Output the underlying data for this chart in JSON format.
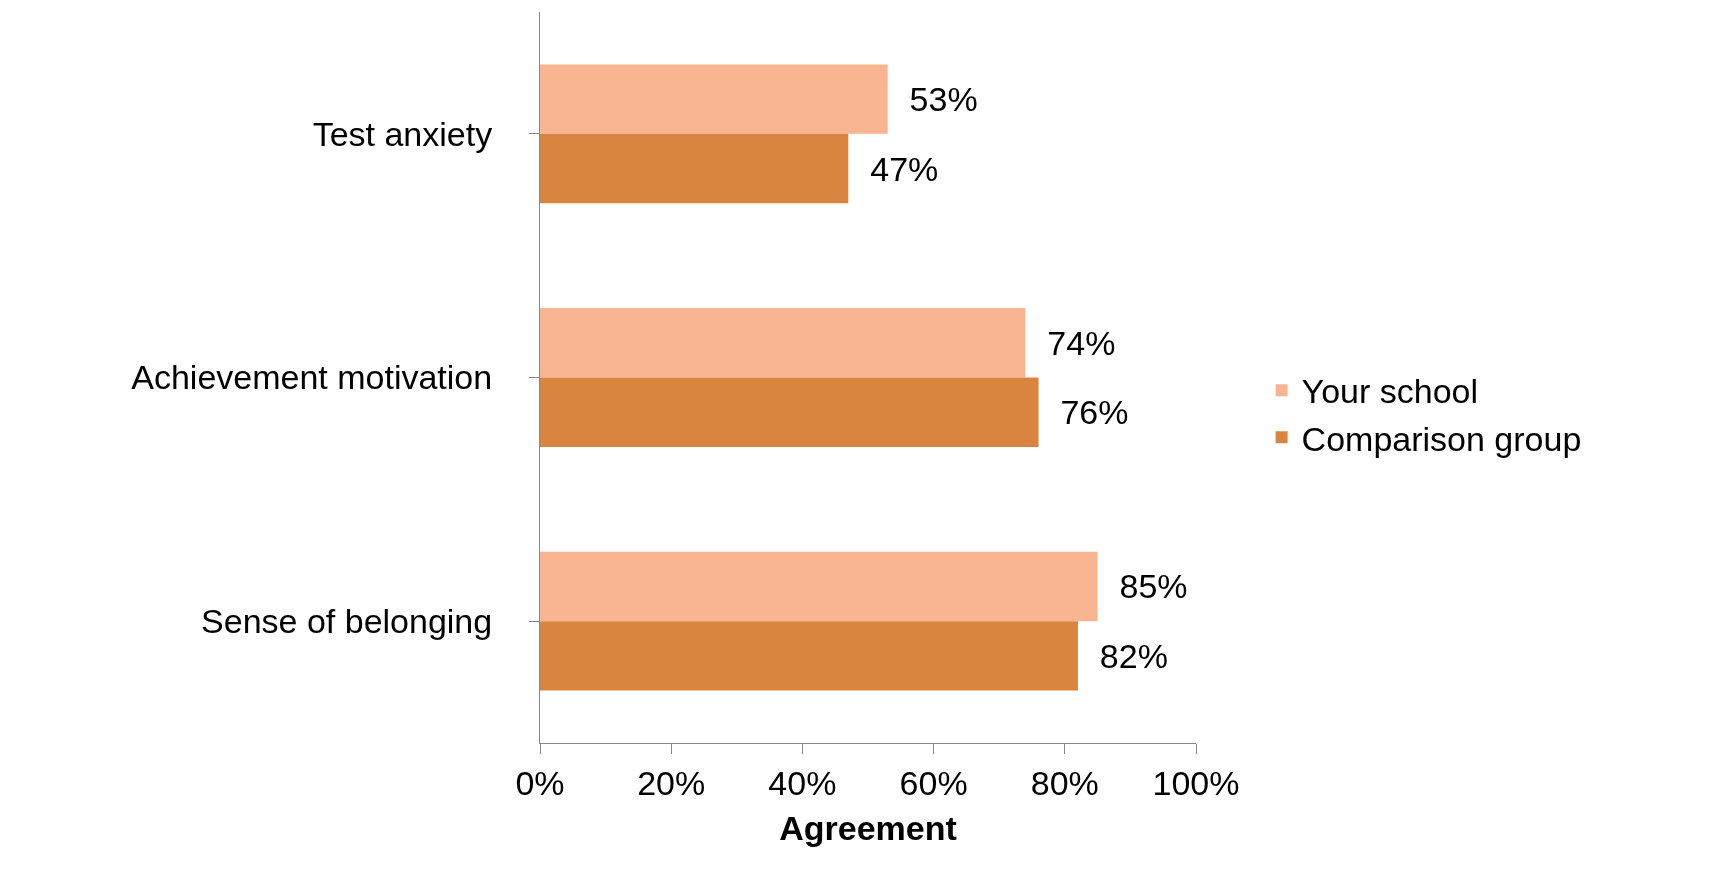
{
  "chart_data": {
    "type": "bar",
    "orientation": "horizontal",
    "xlabel": "Agreement",
    "categories": [
      "Test anxiety",
      "Achievement motivation",
      "Sense of belonging"
    ],
    "series": [
      {
        "name": "Your school",
        "color": "#f9b591",
        "values": [
          53,
          74,
          85
        ],
        "value_labels": [
          "53%",
          "74%",
          "85%"
        ]
      },
      {
        "name": "Comparison group",
        "color": "#d9843f",
        "values": [
          47,
          76,
          82
        ],
        "value_labels": [
          "47%",
          "76%",
          "82%"
        ]
      }
    ],
    "xlim": [
      0,
      100
    ],
    "xticks": [
      {
        "value": 0,
        "label": "0%"
      },
      {
        "value": 20,
        "label": "20%"
      },
      {
        "value": 40,
        "label": "40%"
      },
      {
        "value": 60,
        "label": "60%"
      },
      {
        "value": 80,
        "label": "80%"
      },
      {
        "value": 100,
        "label": "100%"
      }
    ],
    "legend": "right"
  }
}
